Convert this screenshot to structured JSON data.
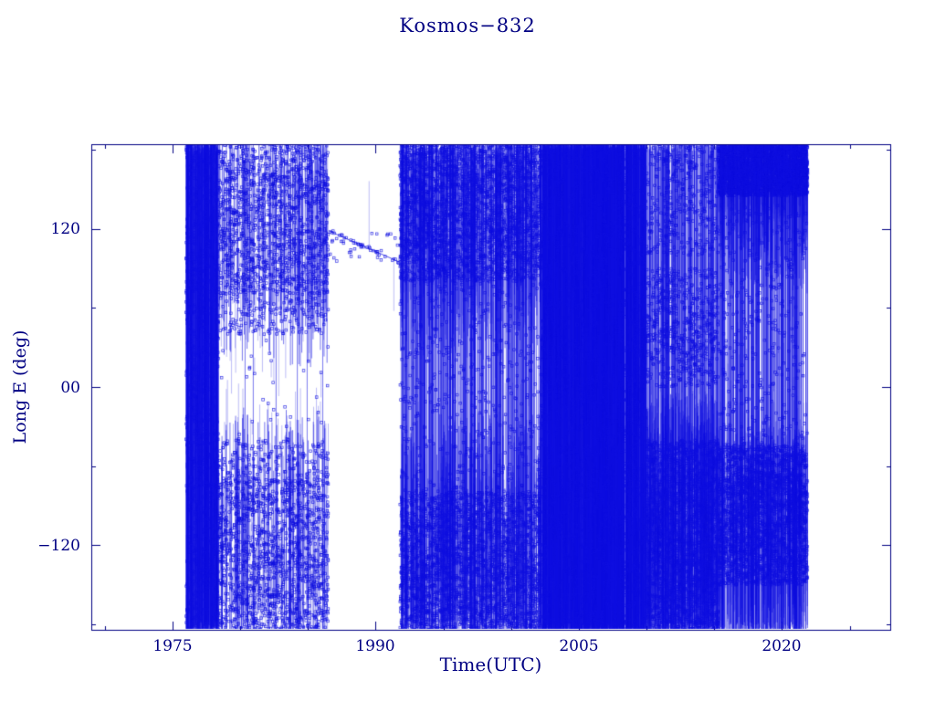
{
  "page": {
    "background": "#ffffff"
  },
  "chart_data": {
    "type": "scatter",
    "title": "Kosmos−832",
    "xlabel": "Time(UTC)",
    "ylabel": "Long E (deg)",
    "xlim": [
      1969,
      2028
    ],
    "ylim": [
      -184,
      184
    ],
    "x_ticks": [
      {
        "value": 1975,
        "label": "1975"
      },
      {
        "value": 1990,
        "label": "1990"
      },
      {
        "value": 2005,
        "label": "2005"
      },
      {
        "value": 2020,
        "label": "2020"
      }
    ],
    "y_ticks": [
      {
        "value": 120,
        "label": "120"
      },
      {
        "value": 0,
        "label": "00"
      },
      {
        "value": -120,
        "label": "−120"
      }
    ],
    "minor_x_step": 5,
    "minor_y_step": 60,
    "grid": false,
    "legend": null,
    "marker": "open-square",
    "colors": {
      "data": "#0f0fe0",
      "axis": "#000082",
      "text": "#000082",
      "background": "#ffffff"
    },
    "seed": 20240832,
    "segments": [
      {
        "t0": 1976.0,
        "t1": 1978.4,
        "verticals": [
          {
            "span": [
              -184,
              184
            ],
            "rate": 90,
            "jitter": 8
          }
        ],
        "clusters": [
          {
            "y": [
              -184,
              184
            ],
            "rate": 400,
            "link": 0.3
          }
        ]
      },
      {
        "t0": 1978.4,
        "t1": 1986.5,
        "verticals": [
          {
            "span": [
              40,
              184
            ],
            "rate": 10,
            "jitter": 25
          },
          {
            "span": [
              -184,
              -40
            ],
            "rate": 10,
            "jitter": 25
          },
          {
            "span": [
              -184,
              184
            ],
            "rate": 0.7,
            "jitter": 4
          }
        ],
        "clusters": [
          {
            "y": [
              70,
              184
            ],
            "rate": 170,
            "link": 0.3
          },
          {
            "y": [
              -184,
              -70
            ],
            "rate": 170,
            "link": 0.3
          },
          {
            "y": [
              40,
              70
            ],
            "rate": 22,
            "link": 0.2
          },
          {
            "y": [
              -70,
              -40
            ],
            "rate": 22,
            "link": 0.2
          },
          {
            "y": [
              -40,
              40
            ],
            "rate": 4,
            "link": 0.1
          }
        ]
      },
      {
        "t0": 1986.5,
        "t1": 1991.8,
        "verticals": [],
        "clusters": [
          {
            "y": [
              95,
              118
            ],
            "rate": 6,
            "link": 0.1
          }
        ]
      },
      {
        "t0": 1991.8,
        "t1": 2002.2,
        "verticals": [
          {
            "span": [
              -184,
              184
            ],
            "rate": 26,
            "jitter": 8
          },
          {
            "span": [
              50,
              184
            ],
            "rate": 14,
            "jitter": 30
          },
          {
            "span": [
              -184,
              -50
            ],
            "rate": 14,
            "jitter": 30
          }
        ],
        "clusters": [
          {
            "y": [
              80,
              184
            ],
            "rate": 240,
            "link": 0.3
          },
          {
            "y": [
              -184,
              -80
            ],
            "rate": 220,
            "link": 0.3
          },
          {
            "y": [
              -80,
              80
            ],
            "rate": 45,
            "link": 0.15
          }
        ]
      },
      {
        "t0": 2002.2,
        "t1": 2010.0,
        "verticals": [
          {
            "span": [
              -184,
              184
            ],
            "rate": 130,
            "jitter": 5
          }
        ],
        "clusters": [
          {
            "y": [
              -184,
              184
            ],
            "rate": 300,
            "link": 0.3
          }
        ]
      },
      {
        "t0": 2010.0,
        "t1": 2015.3,
        "verticals": [
          {
            "span": [
              -184,
              184
            ],
            "rate": 30,
            "jitter": 6
          },
          {
            "span": [
              -184,
              -30
            ],
            "rate": 30,
            "jitter": 25
          }
        ],
        "clusters": [
          {
            "y": [
              -184,
              -40
            ],
            "rate": 380,
            "link": 0.35
          },
          {
            "y": [
              0,
              90
            ],
            "rate": 110,
            "link": 0.2
          },
          {
            "y": [
              100,
              184
            ],
            "rate": 70,
            "link": 0.2
          }
        ]
      },
      {
        "t0": 2015.3,
        "t1": 2021.9,
        "verticals": [
          {
            "span": [
              -184,
              184
            ],
            "rate": 28,
            "jitter": 6
          },
          {
            "span": [
              90,
              184
            ],
            "rate": 18,
            "jitter": 20
          },
          {
            "span": [
              -184,
              -50
            ],
            "rate": 18,
            "jitter": 20
          }
        ],
        "clusters": [
          {
            "y": [
              145,
              184
            ],
            "rate": 420,
            "link": 0.3
          },
          {
            "y": [
              -150,
              -45
            ],
            "rate": 340,
            "link": 0.3
          },
          {
            "y": [
              -45,
              140
            ],
            "rate": 55,
            "link": 0.15
          }
        ]
      }
    ],
    "drift_line": {
      "t0": 1986.6,
      "t1": 1991.7,
      "y0": 118,
      "y1": 95,
      "markers": 30
    }
  }
}
